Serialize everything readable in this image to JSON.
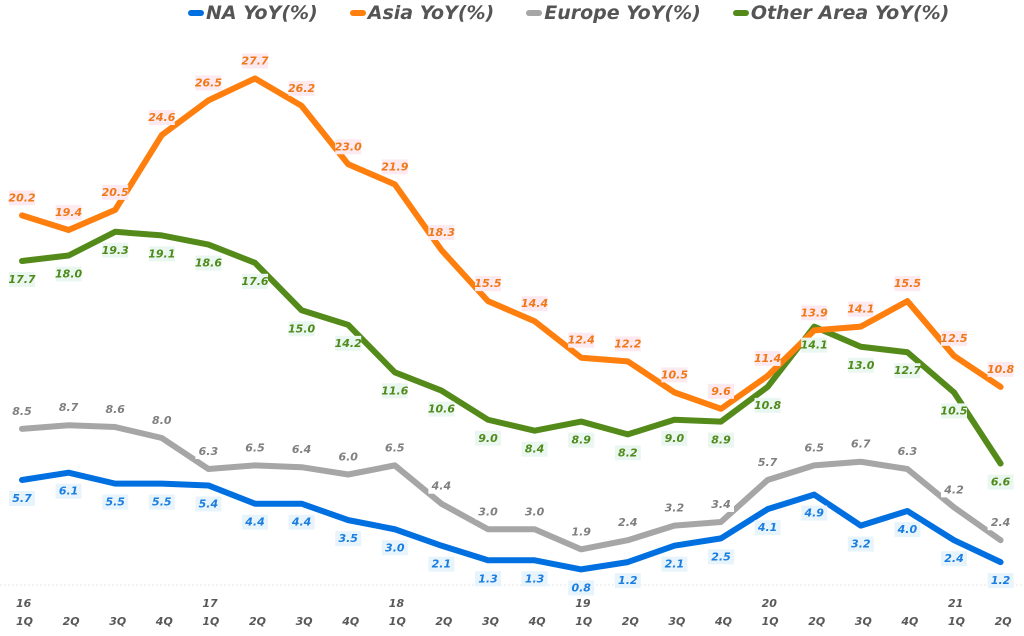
{
  "chart_data": {
    "type": "line",
    "title": "",
    "xlabel": "",
    "ylabel": "",
    "legend_placement": "top",
    "grid": false,
    "ylim": [
      0,
      30
    ],
    "year_labels": [
      "16",
      "",
      "",
      "",
      "17",
      "",
      "",
      "",
      "18",
      "",
      "",
      "",
      "19",
      "",
      "",
      "",
      "20",
      "",
      "",
      "",
      "21",
      ""
    ],
    "categories": [
      "1Q",
      "2Q",
      "3Q",
      "4Q",
      "1Q",
      "2Q",
      "3Q",
      "4Q",
      "1Q",
      "2Q",
      "3Q",
      "4Q",
      "1Q",
      "2Q",
      "3Q",
      "4Q",
      "1Q",
      "2Q",
      "3Q",
      "4Q",
      "1Q",
      "2Q"
    ],
    "series": [
      {
        "name": "NA YoY(%)",
        "color": "#0070e0",
        "label_color": "#1a7de0",
        "label_bg": "#e8f4fb",
        "label_pos": "below",
        "values": [
          5.7,
          6.1,
          5.5,
          5.5,
          5.4,
          4.4,
          4.4,
          3.5,
          3.0,
          2.1,
          1.3,
          1.3,
          0.8,
          1.2,
          2.1,
          2.5,
          4.1,
          4.9,
          3.2,
          4.0,
          2.4,
          1.2
        ]
      },
      {
        "name": "Asia YoY(%)",
        "color": "#ff7f0e",
        "label_color": "#f07818",
        "label_bg": "#fdeaf0",
        "label_pos": "above",
        "values": [
          20.2,
          19.4,
          20.5,
          24.6,
          26.5,
          27.7,
          26.2,
          23.0,
          21.9,
          18.3,
          15.5,
          14.4,
          12.4,
          12.2,
          10.5,
          9.6,
          11.4,
          13.9,
          14.1,
          15.5,
          12.5,
          10.8
        ]
      },
      {
        "name": "Europe YoY(%)",
        "color": "#a6a6a6",
        "label_color": "#7f7f7f",
        "label_bg": "#ffffff",
        "label_pos": "above",
        "values": [
          8.5,
          8.7,
          8.6,
          8.0,
          6.3,
          6.5,
          6.4,
          6.0,
          6.5,
          4.4,
          3.0,
          3.0,
          1.9,
          2.4,
          3.2,
          3.4,
          5.7,
          6.5,
          6.7,
          6.3,
          4.2,
          2.4
        ]
      },
      {
        "name": "Other Area YoY(%)",
        "color": "#548a1a",
        "label_color": "#4f8a1a",
        "label_bg": "#eaf7f0",
        "label_pos": "below",
        "values": [
          17.7,
          18.0,
          19.3,
          19.1,
          18.6,
          17.6,
          15.0,
          14.2,
          11.6,
          10.6,
          9.0,
          8.4,
          8.9,
          8.2,
          9.0,
          8.9,
          10.8,
          14.1,
          13.0,
          12.7,
          10.5,
          6.6
        ]
      }
    ]
  }
}
